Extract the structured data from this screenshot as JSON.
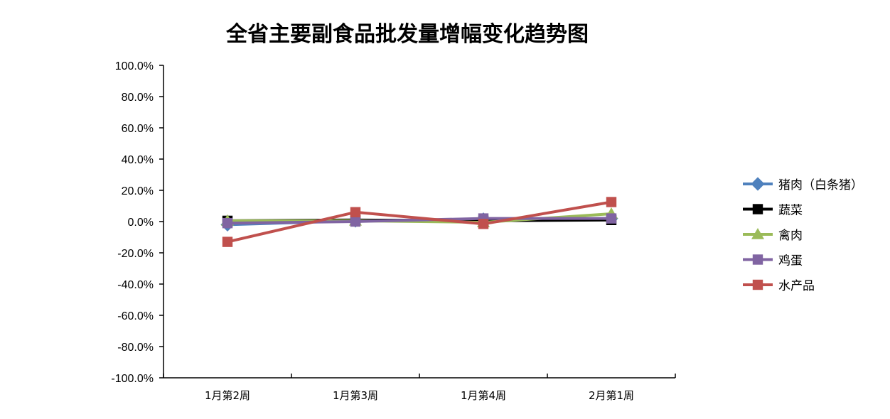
{
  "chart_data": {
    "type": "line",
    "title": "全省主要副食品批发量增幅变化趋势图",
    "xlabel": "",
    "ylabel": "",
    "categories": [
      "1月第2周",
      "1月第3周",
      "1月第4周",
      "2月第1周"
    ],
    "ylim": [
      -100,
      100
    ],
    "ytick_step": 20,
    "ytick_labels": [
      "100.0%",
      "80.0%",
      "60.0%",
      "40.0%",
      "20.0%",
      "0.0%",
      "-20.0%",
      "-40.0%",
      "-60.0%",
      "-80.0%",
      "-100.0%"
    ],
    "grid": false,
    "legend_position": "right",
    "series": [
      {
        "name": "猪肉（白条猪）",
        "marker": "diamond",
        "color": "#4F81BD",
        "values": [
          -2.0,
          0.5,
          1.5,
          2.0
        ]
      },
      {
        "name": "蔬菜",
        "marker": "square",
        "color": "#000000",
        "values": [
          0.5,
          1.0,
          0.5,
          1.0
        ]
      },
      {
        "name": "禽肉",
        "marker": "triangle",
        "color": "#9BBB59",
        "values": [
          0.5,
          0.5,
          -0.5,
          5.0
        ]
      },
      {
        "name": "鸡蛋",
        "marker": "square",
        "color": "#8064A2",
        "values": [
          -1.0,
          0.0,
          2.0,
          2.0
        ]
      },
      {
        "name": "水产品",
        "marker": "square",
        "color": "#C0504D",
        "values": [
          -13.0,
          6.0,
          -1.5,
          12.5
        ]
      }
    ]
  }
}
